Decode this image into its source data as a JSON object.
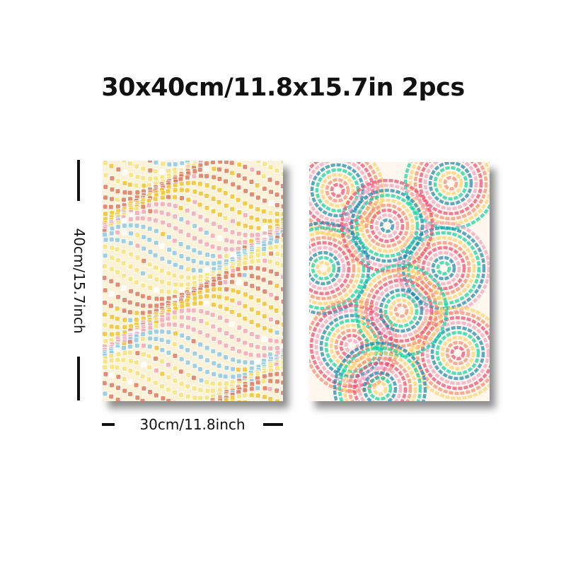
{
  "product": {
    "headline": "30x40cm/11.8x15.7in 2pcs",
    "height_label": "40cm/15.7inch",
    "width_label": "30cm/11.8inch"
  },
  "artwork": {
    "left": {
      "icon": "mosaic-wave-art",
      "colors": [
        "#f4c430",
        "#f7a8b8",
        "#8ecae6",
        "#f9e27a",
        "#e07a5f",
        "#ffffff"
      ]
    },
    "right": {
      "icon": "rainbow-swirl-art",
      "colors": [
        "#ef476f",
        "#f78c6b",
        "#ffd166",
        "#06d6a0",
        "#118ab2",
        "#f2a1c0"
      ]
    }
  }
}
